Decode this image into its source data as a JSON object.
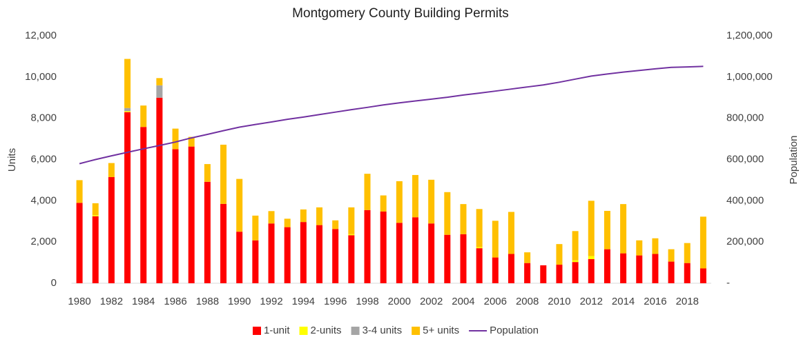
{
  "chart_data": {
    "type": "bar",
    "stacked": true,
    "title": "Montgomery County Building Permits",
    "y_label": "Units",
    "y2_label": "Population",
    "categories": [
      "1980",
      null,
      "1982",
      null,
      "1984",
      null,
      "1986",
      null,
      "1988",
      null,
      "1990",
      null,
      "1992",
      null,
      "1994",
      null,
      "1996",
      null,
      "1998",
      null,
      "2000",
      null,
      "2002",
      null,
      "2004",
      null,
      "2006",
      null,
      "2008",
      null,
      "2010",
      null,
      "2012",
      null,
      "2014",
      null,
      "2016",
      null,
      "2018",
      null
    ],
    "series": [
      {
        "name": "1-unit",
        "color": "#ff0000",
        "values": [
          3900,
          3250,
          5150,
          8300,
          7580,
          9000,
          6500,
          6630,
          4920,
          3850,
          2500,
          2080,
          2900,
          2720,
          2970,
          2820,
          2630,
          2330,
          3550,
          3480,
          2930,
          3200,
          2900,
          2350,
          2380,
          1700,
          1250,
          1420,
          980,
          870,
          900,
          1030,
          1170,
          1650,
          1450,
          1350,
          1420,
          1050,
          980,
          720
        ]
      },
      {
        "name": "2-units",
        "color": "#ffff00",
        "values": [
          0,
          50,
          0,
          50,
          0,
          0,
          0,
          0,
          0,
          0,
          0,
          0,
          0,
          0,
          0,
          0,
          0,
          50,
          0,
          0,
          0,
          0,
          0,
          0,
          0,
          50,
          0,
          0,
          0,
          0,
          0,
          80,
          150,
          0,
          0,
          0,
          0,
          0,
          0,
          0
        ]
      },
      {
        "name": "3-4 units",
        "color": "#a5a5a5",
        "values": [
          0,
          0,
          0,
          150,
          0,
          600,
          0,
          0,
          0,
          0,
          0,
          0,
          0,
          0,
          0,
          0,
          0,
          0,
          0,
          0,
          0,
          0,
          0,
          0,
          0,
          0,
          0,
          0,
          0,
          0,
          0,
          0,
          0,
          0,
          0,
          0,
          0,
          0,
          0,
          0
        ]
      },
      {
        "name": "5+ units",
        "color": "#ffc000",
        "values": [
          1100,
          580,
          680,
          2380,
          1040,
          350,
          1000,
          470,
          860,
          2870,
          2560,
          1200,
          600,
          410,
          610,
          860,
          420,
          1300,
          1760,
          780,
          2020,
          2050,
          2120,
          2070,
          1460,
          1850,
          1780,
          2040,
          520,
          0,
          1000,
          1420,
          2680,
          1860,
          2390,
          730,
          760,
          600,
          970,
          2510
        ]
      },
      {
        "name": "Population",
        "color": "#7030a0",
        "type": "line",
        "axis": "y2",
        "values": [
          580000,
          600000,
          618000,
          635000,
          652000,
          668000,
          685000,
          705000,
          722000,
          740000,
          757000,
          770000,
          782000,
          795000,
          806000,
          818000,
          830000,
          842000,
          853000,
          865000,
          875000,
          884000,
          893000,
          902000,
          913000,
          922000,
          932000,
          942000,
          952000,
          962000,
          975000,
          990000,
          1005000,
          1015000,
          1024000,
          1032000,
          1040000,
          1047000,
          1049000,
          1052000
        ]
      }
    ],
    "ylim": [
      0,
      12000
    ],
    "yticks": [
      0,
      {
        "value": 2000,
        "label": "2,000"
      },
      {
        "value": 4000,
        "label": "4,000"
      },
      {
        "value": 6000,
        "label": "6,000"
      },
      {
        "value": 8000,
        "label": "8,000"
      },
      {
        "value": 10000,
        "label": "10,000"
      },
      {
        "value": 12000,
        "label": "12,000"
      }
    ],
    "y2lim": [
      0,
      1200000
    ],
    "y2ticks": [
      {
        "value": 0,
        "label": "-"
      },
      {
        "value": 200000,
        "label": "200,000"
      },
      {
        "value": 400000,
        "label": "400,000"
      },
      {
        "value": 600000,
        "label": "600,000"
      },
      {
        "value": 800000,
        "label": "800,000"
      },
      {
        "value": 1000000,
        "label": "1,000,000"
      },
      {
        "value": 1200000,
        "label": "1,200,000"
      }
    ],
    "grid": false,
    "legend": "bottom"
  }
}
